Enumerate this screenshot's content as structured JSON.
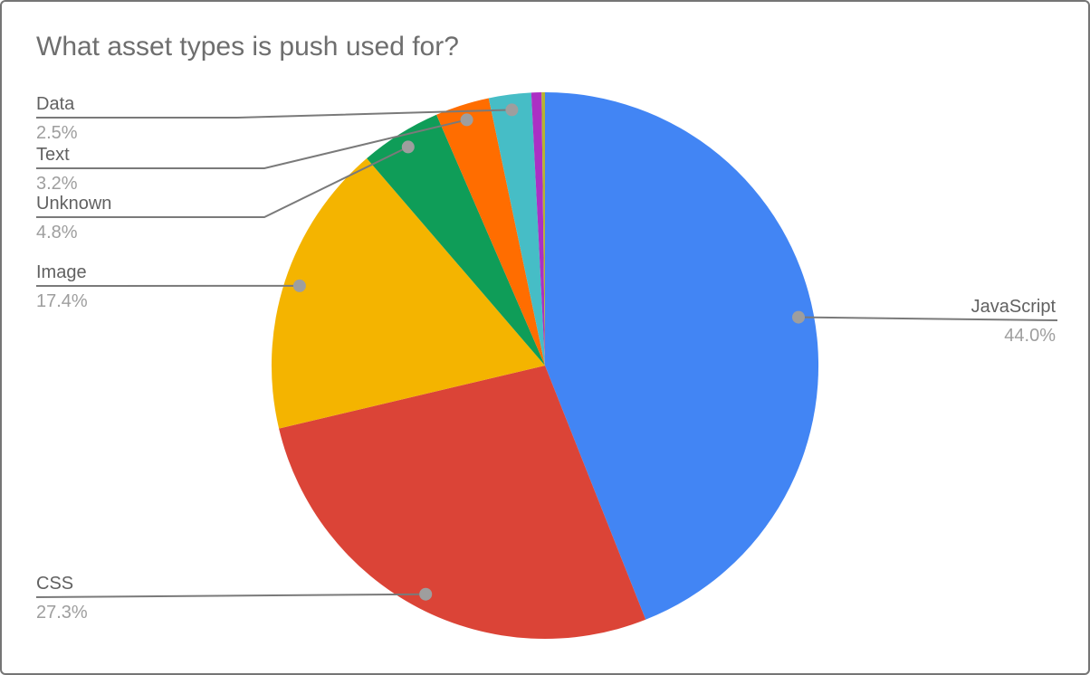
{
  "window": {
    "background": "#FFFFFF",
    "border_color": "#757575"
  },
  "chart_data": {
    "type": "pie",
    "title": "What asset types is push used for?",
    "title_color": "#6E6E6E",
    "label_color": "#616161",
    "percent_color": "#9E9E9E",
    "leader_line_color": "#7A7A7A",
    "dot_color": "#9E9E9E",
    "start": "12-oclock",
    "direction": "clockwise",
    "legend": "none (callout labels)",
    "slices": [
      {
        "label": "JavaScript",
        "value": 44.0,
        "percent_label": "44.0%",
        "color": "#4285F4"
      },
      {
        "label": "CSS",
        "value": 27.3,
        "percent_label": "27.3%",
        "color": "#DB4437"
      },
      {
        "label": "Image",
        "value": 17.4,
        "percent_label": "17.4%",
        "color": "#F4B400"
      },
      {
        "label": "Unknown",
        "value": 4.8,
        "percent_label": "4.8%",
        "color": "#0F9D58"
      },
      {
        "label": "Text",
        "value": 3.2,
        "percent_label": "3.2%",
        "color": "#FF6D00"
      },
      {
        "label": "Data",
        "value": 2.5,
        "percent_label": "2.5%",
        "color": "#46BDC6"
      },
      {
        "label": "",
        "value": 0.6,
        "percent_label": "",
        "color": "#AB30C4"
      },
      {
        "label": "",
        "value": 0.2,
        "percent_label": "",
        "color": "#B5B331"
      }
    ]
  }
}
